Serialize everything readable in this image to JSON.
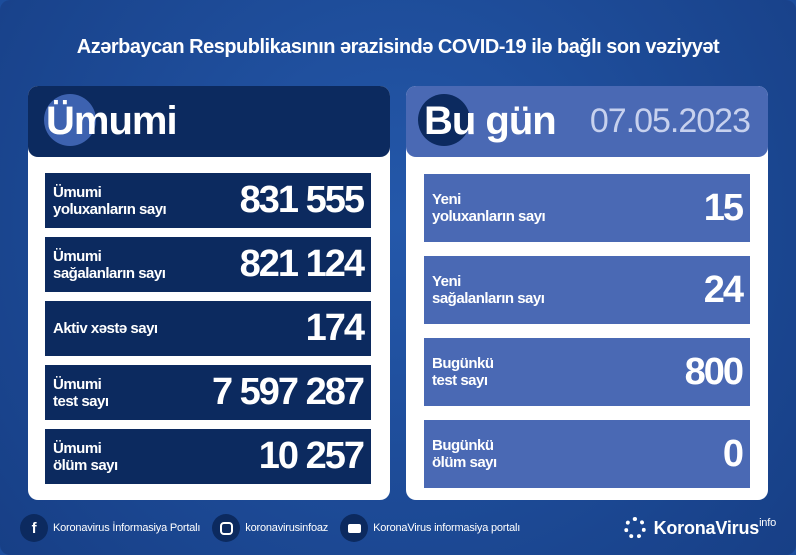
{
  "title": "Azərbaycan Respublikasının ərazisində COVID-19 ilə bağlı son vəziyyət",
  "colors": {
    "background": "#1c4d9c",
    "navy": "#0c2a5f",
    "light_blue": "#4a69b4",
    "white": "#ffffff"
  },
  "total": {
    "header": "Ümumi",
    "rows": [
      {
        "label1": "Ümumi",
        "label2": "yoluxanların sayı",
        "value": "831 555"
      },
      {
        "label1": "Ümumi",
        "label2": "sağalanların sayı",
        "value": "821 124"
      },
      {
        "label1": "Aktiv xəstə sayı",
        "label2": "",
        "value": "174"
      },
      {
        "label1": "Ümumi",
        "label2": "test sayı",
        "value": "7 597 287"
      },
      {
        "label1": "Ümumi",
        "label2": "ölüm sayı",
        "value": "10 257"
      }
    ]
  },
  "today": {
    "header": "Bu gün",
    "date": "07.05.2023",
    "rows": [
      {
        "label1": "Yeni",
        "label2": "yoluxanların sayı",
        "value": "15"
      },
      {
        "label1": "Yeni",
        "label2": "sağalanların sayı",
        "value": "24"
      },
      {
        "label1": "Bugünkü",
        "label2": "test sayı",
        "value": "800"
      },
      {
        "label1": "Bugünkü",
        "label2": "ölüm sayı",
        "value": "0"
      }
    ]
  },
  "footer": {
    "facebook": "Koronavirus İnformasiya Portalı",
    "instagram": "koronavirusinfoaz",
    "youtube": "KoronaVirus informasiya portalı",
    "brand": "KoronaVirus",
    "brand_sup": "info",
    "icons": [
      "facebook-icon",
      "instagram-icon",
      "youtube-icon",
      "virus-logo-icon"
    ]
  }
}
